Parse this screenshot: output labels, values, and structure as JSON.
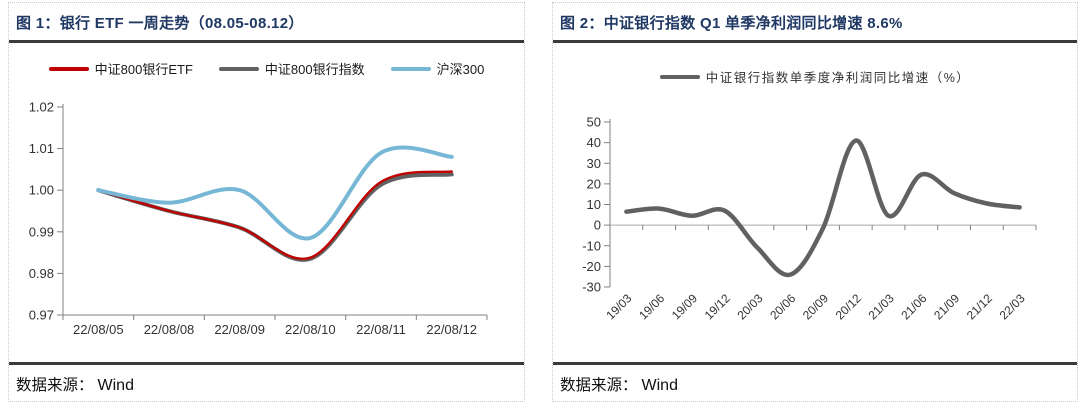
{
  "figure1": {
    "title": "图 1：银行 ETF 一周走势（08.05-08.12）",
    "source_label": "数据来源：",
    "source_value": "Wind"
  },
  "figure2": {
    "title": "图 2：中证银行指数 Q1 单季净利润同比增速 8.6%",
    "source_label": "数据来源：",
    "source_value": "Wind"
  },
  "colors": {
    "title_navy": "#1F3864",
    "divider_dark": "#3A3A3A",
    "axis_gray": "#808080",
    "zero_line_gray": "#A6A6A6",
    "etf_red": "#C00000",
    "index_gray": "#616161",
    "hs300_blue": "#76B7D6"
  },
  "chart_data": [
    {
      "type": "line",
      "title": "银行 ETF 一周走势（08.05-08.12）",
      "categories": [
        "22/08/05",
        "22/08/08",
        "22/08/09",
        "22/08/10",
        "22/08/11",
        "22/08/12"
      ],
      "series": [
        {
          "name": "中证800银行ETF",
          "color": "#C00000",
          "values": [
            1.0,
            0.995,
            0.991,
            0.9838,
            1.002,
            1.0045
          ]
        },
        {
          "name": "中证800银行指数",
          "color": "#616161",
          "values": [
            1.0,
            0.995,
            0.991,
            0.9835,
            1.0013,
            1.0038
          ]
        },
        {
          "name": "沪深300",
          "color": "#76B7D6",
          "values": [
            1.0,
            0.997,
            1.0,
            0.9885,
            1.009,
            1.008
          ]
        }
      ],
      "ylim": [
        0.97,
        1.02
      ],
      "ytick_step": 0.01,
      "ytick_labels": [
        "0.97",
        "0.98",
        "0.99",
        "1.00",
        "1.01",
        "1.02"
      ],
      "grid": false,
      "smooth": true,
      "legend_position": "top",
      "x_label_rotation": 0
    },
    {
      "type": "line",
      "title": "中证银行指数 Q1 单季净利润同比增速 8.6%",
      "categories": [
        "19/03",
        "19/06",
        "19/09",
        "19/12",
        "20/03",
        "20/06",
        "20/09",
        "20/12",
        "21/03",
        "21/06",
        "21/09",
        "21/12",
        "22/03"
      ],
      "series": [
        {
          "name": "中证银行指数单季度净利润同比增速（%）",
          "color": "#616161",
          "values": [
            6.5,
            8.0,
            4.5,
            7.0,
            -11.0,
            -24.0,
            -1.5,
            41.0,
            4.5,
            24.5,
            15.5,
            10.5,
            8.6
          ]
        }
      ],
      "ylim": [
        -30,
        50
      ],
      "ytick_step": 10,
      "ytick_labels": [
        "-30",
        "-20",
        "-10",
        "0",
        "10",
        "20",
        "30",
        "40",
        "50"
      ],
      "x_axis_cross": 0,
      "grid": false,
      "smooth": true,
      "legend_position": "top",
      "x_label_rotation": -45
    }
  ]
}
